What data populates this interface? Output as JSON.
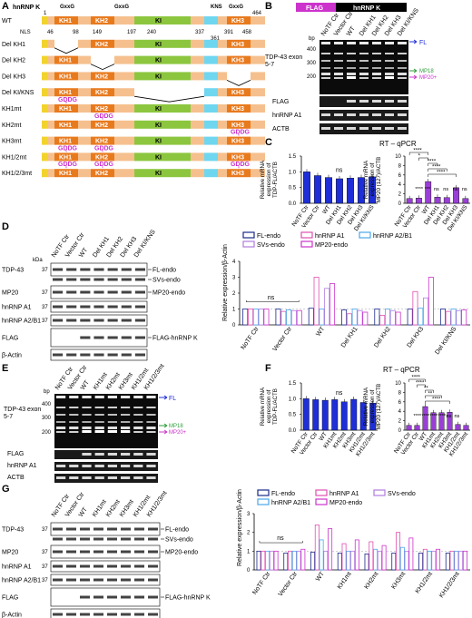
{
  "panels": [
    "A",
    "B",
    "C",
    "D",
    "E",
    "F",
    "G"
  ],
  "panel_a": {
    "title": "hnRNP K",
    "rows": [
      {
        "name": "WT"
      },
      {
        "name": "Del KH1"
      },
      {
        "name": "Del KH2"
      },
      {
        "name": "Del KH3"
      },
      {
        "name": "Del KI/KNS"
      },
      {
        "name": "KH1mt"
      },
      {
        "name": "KH2mt"
      },
      {
        "name": "KH3mt"
      },
      {
        "name": "KH1/2mt"
      },
      {
        "name": "KH1/2/3mt"
      }
    ],
    "domains": {
      "kh1": "KH1",
      "kh2": "KH2",
      "ki": "KI",
      "kh3": "KH3"
    },
    "motifs": {
      "gxxg": "GxxG",
      "kns": "KNS",
      "nls": "NLS",
      "gddg": "GDDG"
    },
    "positions": [
      "1",
      "46",
      "98",
      "149",
      "197",
      "240",
      "337",
      "361",
      "391",
      "458",
      "464"
    ]
  },
  "panel_b": {
    "header_flag": "FLAG",
    "header_hnrnpk": "hnRNP K",
    "lanes": [
      "NoTF Ctr",
      "Vector Ctr",
      "WT",
      "Del KH1",
      "Del KH2",
      "Del KH3",
      "Del KI/KNS"
    ],
    "bp_label": "bp",
    "bp_markers": [
      "400",
      "300",
      "200"
    ],
    "gel_label": "TDP-43 exon 5-7",
    "products": {
      "fl": "FL",
      "mp18": "MP18",
      "mp20": "MP20+"
    },
    "blots": [
      "FLAG",
      "hnRNP A1",
      "ACTB"
    ]
  },
  "panel_c": {
    "title": "RT – qPCR",
    "left": {
      "ylabel": "Relative mRNA expression of TDP-FL/ACTB",
      "ticks": [
        "0.0",
        "0.5",
        "1.0",
        "1.5"
      ],
      "ns": "ns",
      "chart_data": {
        "type": "bar",
        "categories": [
          "NoTF Ctr",
          "Vector Ctr",
          "WT",
          "Del KH1",
          "Del KH2",
          "Del KH3",
          "Del KI/KNS"
        ],
        "values": [
          1.0,
          0.88,
          0.82,
          0.78,
          0.8,
          0.82,
          0.84
        ],
        "ylim": [
          0,
          1.5
        ]
      }
    },
    "right": {
      "ylabel": "Relative mRNA expression of MP20 (127)/ACTB",
      "ticks": [
        "0",
        "2",
        "4",
        "6",
        "8",
        "10"
      ],
      "sig": [
        "****",
        "*",
        "****",
        "****",
        "****",
        "****",
        "***",
        "ns",
        "ns",
        "ns",
        "ns"
      ],
      "chart_data": {
        "type": "bar",
        "categories": [
          "NoTF Ctr",
          "Vector Ctr",
          "WT",
          "Del KH1",
          "Del KH2",
          "Del KH3",
          "Del KI/KNS"
        ],
        "values": [
          1.0,
          1.1,
          4.6,
          1.3,
          1.2,
          3.3,
          1.0
        ],
        "ylim": [
          0,
          10
        ]
      }
    }
  },
  "panel_d": {
    "lanes": [
      "NoTF Ctr",
      "Vector Ctr",
      "WT",
      "Del KH1",
      "Del KH2",
      "Del KH3",
      "Del KI/KNS"
    ],
    "kda": "kDa",
    "blots": [
      {
        "name": "TDP-43",
        "kda": "37",
        "right": "FL-endo"
      },
      {
        "name": "",
        "kda": "",
        "right": "SVs-endo"
      },
      {
        "name": "MP20",
        "kda": "37",
        "right": "MP20-endo"
      },
      {
        "name": "hnRNP A1",
        "kda": "37",
        "right": ""
      },
      {
        "name": "hnRNP A2/B1",
        "kda": "37",
        "right": ""
      },
      {
        "name": "FLAG",
        "kda": "",
        "right": "FLAG-hnRNP K"
      },
      {
        "name": "β-Actin",
        "kda": "",
        "right": ""
      }
    ],
    "legend": [
      "FL-endo",
      "hnRNP A1",
      "hnRNP A2/B1",
      "SVs-endo",
      "MP20-endo"
    ],
    "ylabel": "Relative expression/β-Actin",
    "ticks": [
      "0",
      "1",
      "2",
      "3",
      "4"
    ],
    "ns": "ns",
    "chart_data": {
      "type": "bar",
      "categories": [
        "NoTF Ctr",
        "Vector Ctr",
        "WT",
        "Del KH1",
        "Del KH2",
        "Del KH3",
        "Del KI/KNS"
      ],
      "series": [
        {
          "name": "FL-endo",
          "values": [
            1.0,
            1.0,
            1.05,
            0.95,
            1.0,
            1.0,
            1.0
          ]
        },
        {
          "name": "hnRNP A1",
          "values": [
            1.0,
            0.85,
            3.0,
            0.7,
            0.6,
            2.1,
            0.85
          ]
        },
        {
          "name": "hnRNP A2/B1",
          "values": [
            1.0,
            0.95,
            1.0,
            1.0,
            1.0,
            1.05,
            1.0
          ]
        },
        {
          "name": "SVs-endo",
          "values": [
            1.0,
            0.9,
            2.3,
            0.9,
            0.9,
            1.7,
            0.9
          ]
        },
        {
          "name": "MP20-endo",
          "values": [
            1.0,
            0.9,
            2.6,
            0.8,
            0.8,
            3.0,
            0.95
          ]
        }
      ],
      "ylim": [
        0,
        4
      ]
    }
  },
  "panel_e": {
    "lanes": [
      "NoTF Ctr",
      "Vector Ctr",
      "WT",
      "KH1mt",
      "KH2mt",
      "KH3mt",
      "KH1/2mt",
      "KH1/2/3mt"
    ],
    "bp_label": "bp",
    "bp_markers": [
      "400",
      "300",
      "200"
    ],
    "gel_label": "TDP-43 exon 5-7",
    "products": {
      "fl": "FL",
      "mp18": "MP18",
      "mp20": "MP20+"
    },
    "blots": [
      "FLAG",
      "hnRNP A1",
      "ACTB"
    ]
  },
  "panel_f": {
    "title": "RT – qPCR",
    "left": {
      "ylabel": "Relative mRNA expression of TDP-FL/ACTB",
      "ticks": [
        "0.0",
        "0.5",
        "1.0",
        "1.5"
      ],
      "ns": "ns",
      "chart_data": {
        "type": "bar",
        "categories": [
          "NoTF Ctr",
          "Vector Ctr",
          "WT",
          "KH1mt",
          "KH2mt",
          "KH3mt",
          "KH1/2mt",
          "KH1/2/3mt"
        ],
        "values": [
          1.0,
          0.97,
          0.95,
          0.97,
          0.9,
          0.98,
          0.88,
          0.86
        ],
        "ylim": [
          0,
          1.5
        ]
      }
    },
    "right": {
      "ylabel": "Relative mRNA expression of MP20 (127)/ACTB",
      "ticks": [
        "0",
        "2",
        "4",
        "6",
        "8",
        "10"
      ],
      "sig": [
        "****",
        "****",
        "**",
        "**",
        "****",
        "****",
        "****",
        "****",
        "****",
        "ns",
        "ns"
      ],
      "chart_data": {
        "type": "bar",
        "categories": [
          "NoTF Ctr",
          "Vector Ctr",
          "WT",
          "KH1mt",
          "KH2mt",
          "KH3mt",
          "KH1/2mt",
          "KH1/2/3mt"
        ],
        "values": [
          1.0,
          1.0,
          5.0,
          3.7,
          3.7,
          3.8,
          1.2,
          1.0
        ],
        "ylim": [
          0,
          10
        ]
      }
    }
  },
  "panel_g": {
    "lanes": [
      "NoTF Ctr",
      "Vector Ctr",
      "WT",
      "KH1mt",
      "KH2mt",
      "KH3mt",
      "KH1/2mt",
      "KH1/2/3mt"
    ],
    "blots": [
      {
        "name": "TDP-43",
        "kda": "37",
        "right": "FL-endo"
      },
      {
        "name": "",
        "kda": "",
        "right": "SVs-endo"
      },
      {
        "name": "MP20",
        "kda": "37",
        "right": "MP20-endo"
      },
      {
        "name": "hnRNP A1",
        "kda": "37",
        "right": ""
      },
      {
        "name": "hnRNP A2/B1",
        "kda": "37",
        "right": ""
      },
      {
        "name": "FLAG",
        "kda": "",
        "right": "FLAG-hnRNP K"
      },
      {
        "name": "β-Actin",
        "kda": "",
        "right": ""
      }
    ],
    "legend": [
      "FL-endo",
      "hnRNP A1",
      "SVs-endo",
      "hnRNP A2/B1",
      "MP20-endo"
    ],
    "ylabel": "Relative expression/β-Actin",
    "ticks": [
      "0",
      "1",
      "2",
      "3"
    ],
    "ns": "ns",
    "chart_data": {
      "type": "bar",
      "categories": [
        "NoTF Ctr",
        "Vector Ctr",
        "WT",
        "KH1mt",
        "KH2mt",
        "KH3mt",
        "KH1/2mt",
        "KH1/2/3mt"
      ],
      "series": [
        {
          "name": "FL-endo",
          "values": [
            1.0,
            0.9,
            0.95,
            0.9,
            0.85,
            0.9,
            0.9,
            0.9
          ]
        },
        {
          "name": "hnRNP A1",
          "values": [
            1.0,
            1.0,
            2.4,
            1.4,
            1.5,
            2.0,
            1.1,
            1.0
          ]
        },
        {
          "name": "SVs-endo",
          "values": [
            1.0,
            1.0,
            1.6,
            1.0,
            1.1,
            1.2,
            1.0,
            1.0
          ]
        },
        {
          "name": "hnRNP A2/B1",
          "values": [
            1.0,
            1.0,
            1.0,
            1.0,
            1.0,
            1.0,
            1.0,
            1.0
          ]
        },
        {
          "name": "MP20-endo",
          "values": [
            1.0,
            1.1,
            2.2,
            1.6,
            1.3,
            1.7,
            1.1,
            1.0
          ]
        }
      ],
      "ylim": [
        0,
        3
      ]
    }
  },
  "colors": {
    "yellow": "#f2d22e",
    "orange": "#e87a1e",
    "peach": "#f5c08e",
    "green": "#8cc63f",
    "cyan": "#6fd6f0",
    "magenta": "#cc33cc",
    "blue": "#1f2fd8",
    "purple": "#9a3fd6",
    "navy": "#1a2a8a",
    "lightblue": "#4aa6e8",
    "violet": "#b07be0",
    "pink": "#e04fb0",
    "gelgreen": "#2e9e3a"
  }
}
